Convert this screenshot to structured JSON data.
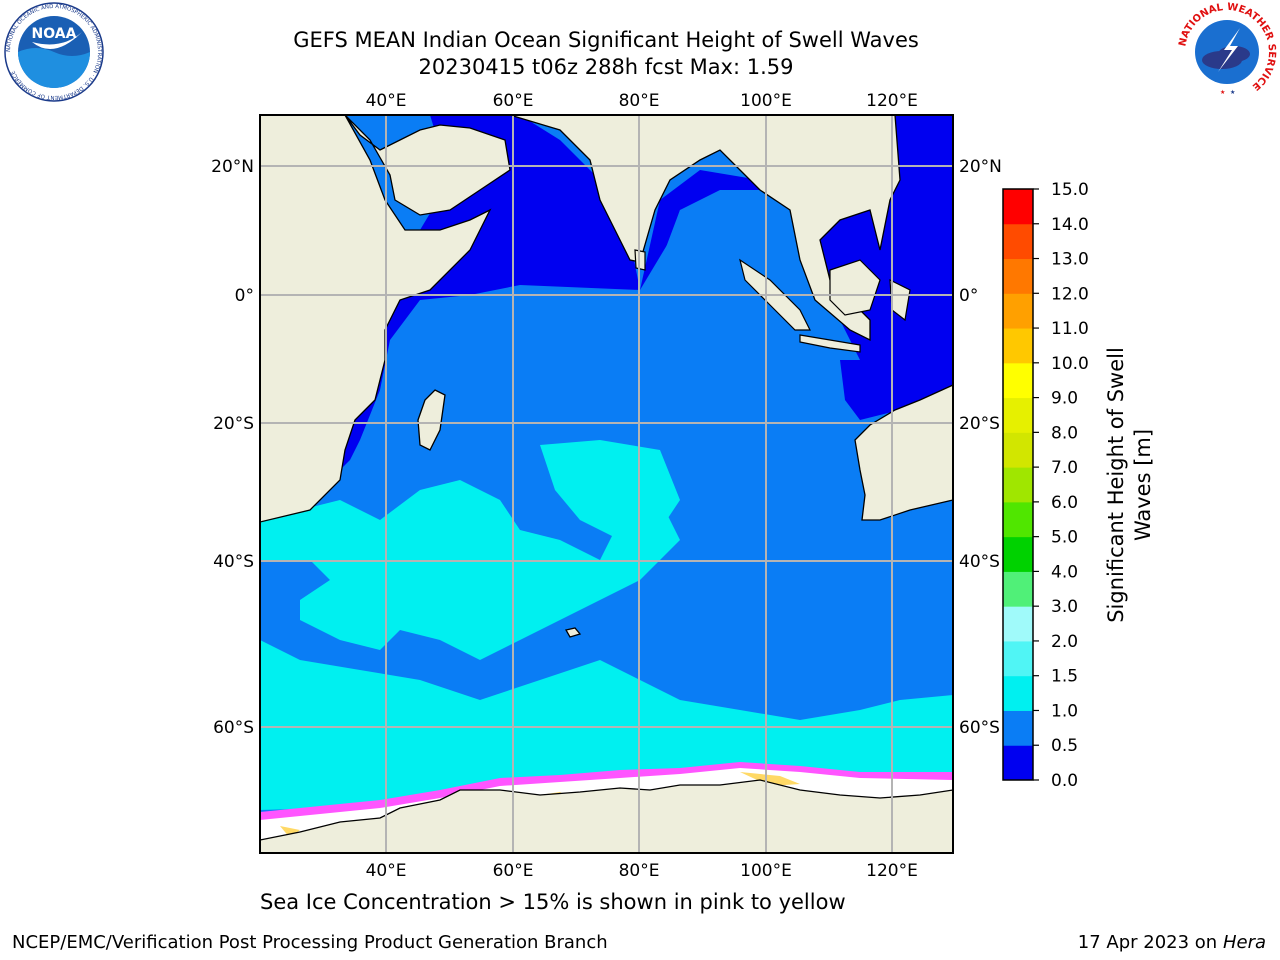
{
  "title_line1": "GEFS MEAN Indian Ocean Significant Height of Swell Waves",
  "title_line2": "20230415 t06z 288h fcst   Max: 1.59",
  "map": {
    "lon_ticks": [
      "40°E",
      "60°E",
      "80°E",
      "100°E",
      "120°E"
    ],
    "lat_ticks": [
      "20°N",
      "0°",
      "20°S",
      "40°S",
      "60°S"
    ]
  },
  "colorbar": {
    "label_line1": "Significant Height of Swell",
    "label_line2": "Waves [m]",
    "ticks": [
      "0.0",
      "0.5",
      "1.0",
      "1.5",
      "2.0",
      "3.0",
      "4.0",
      "5.0",
      "6.0",
      "7.0",
      "8.0",
      "9.0",
      "10.0",
      "11.0",
      "12.0",
      "13.0",
      "14.0",
      "15.0"
    ],
    "colors": [
      "#0000f0",
      "#0a7df5",
      "#00f0f0",
      "#50f5f5",
      "#a0fafa",
      "#50f078",
      "#00d200",
      "#50e600",
      "#a0e600",
      "#d2e600",
      "#e6f000",
      "#ffff00",
      "#ffc800",
      "#ffa000",
      "#ff7800",
      "#ff4b00",
      "#ff0000"
    ]
  },
  "colors": {
    "land": "#eeeedc",
    "grid": "#b4b4b4",
    "ocean_dark": "#0000f0",
    "ocean_mid": "#0a7df5",
    "ocean_light": "#00f0f0",
    "ice": "#ff55ff"
  },
  "logos": {
    "noaa_text": "NOAA",
    "noaa_ring": "NATIONAL OCEANIC AND ATMOSPHERIC ADMINISTRATION · U.S. DEPARTMENT OF COMMERCE",
    "nws_ring": "NATIONAL WEATHER SERVICE"
  },
  "caption": "Sea Ice Concentration > 15% is shown in pink to yellow",
  "footer_left": "NCEP/EMC/Verification Post Processing Product Generation Branch",
  "footer_right_prefix": "17 Apr 2023 on ",
  "footer_right_host": "Hera"
}
